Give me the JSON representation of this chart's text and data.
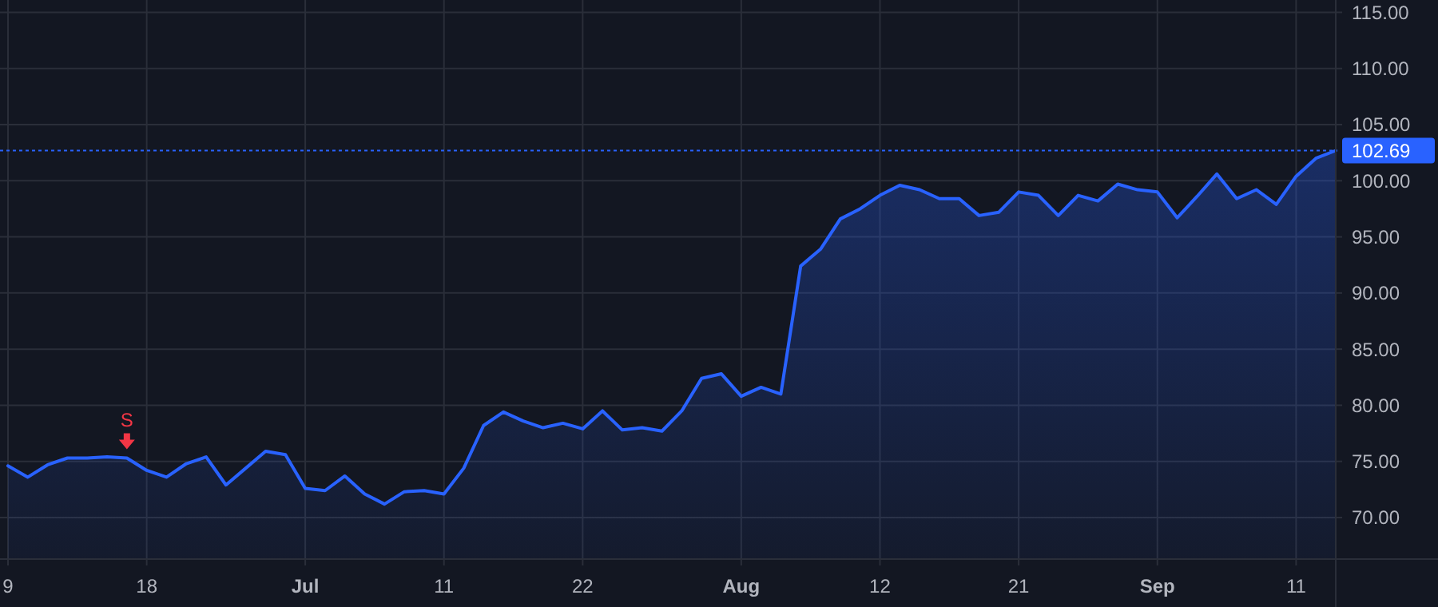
{
  "chart_data": {
    "type": "area",
    "categories": [
      "9",
      null,
      null,
      null,
      null,
      null,
      null,
      "18",
      null,
      null,
      null,
      null,
      null,
      null,
      null,
      "Jul",
      null,
      null,
      null,
      null,
      null,
      null,
      "11",
      null,
      null,
      null,
      null,
      null,
      null,
      "22",
      null,
      null,
      null,
      null,
      null,
      null,
      null,
      "Aug",
      null,
      null,
      null,
      null,
      null,
      null,
      "12",
      null,
      null,
      null,
      null,
      null,
      null,
      "21",
      null,
      null,
      null,
      null,
      null,
      null,
      "Sep",
      null,
      null,
      null,
      null,
      null,
      null,
      "11",
      null,
      null
    ],
    "series": [
      {
        "color": "#2962ff",
        "values": [
          74.6,
          73.6,
          74.7,
          75.3,
          75.3,
          75.4,
          75.3,
          74.2,
          73.6,
          74.8,
          75.4,
          72.9,
          74.4,
          75.9,
          75.6,
          72.6,
          72.4,
          73.7,
          72.1,
          71.2,
          72.3,
          72.4,
          72.1,
          74.4,
          78.2,
          79.4,
          78.6,
          78.0,
          78.4,
          77.9,
          79.5,
          77.8,
          78.0,
          77.7,
          79.5,
          82.4,
          82.8,
          80.8,
          81.6,
          81.0,
          92.4,
          93.9,
          96.6,
          97.5,
          98.7,
          99.6,
          99.2,
          98.4,
          98.4,
          96.9,
          97.2,
          99.0,
          98.7,
          96.9,
          98.7,
          98.2,
          99.7,
          99.2,
          99.0,
          96.7,
          98.6,
          100.6,
          98.4,
          99.2,
          97.9,
          100.4,
          102.0,
          102.69
        ]
      },
      {
        "type": "scatter",
        "color": "#f23645",
        "marker": "triangle",
        "values": [
          null,
          null,
          null,
          null,
          null,
          null,
          76.8,
          null,
          null,
          null,
          null,
          null,
          null,
          null,
          null,
          null,
          null,
          null,
          null,
          null,
          null,
          null,
          null,
          null,
          null,
          null,
          null,
          null,
          null,
          null,
          null,
          null,
          null,
          null,
          null,
          null,
          null,
          null,
          null,
          null,
          null,
          null,
          null,
          null,
          null,
          null,
          null,
          null,
          null,
          null,
          null,
          null,
          null,
          null,
          null,
          null,
          null,
          null,
          null,
          null,
          null,
          null,
          null,
          null,
          null,
          null,
          null,
          null
        ],
        "value_labels": [
          null,
          null,
          null,
          null,
          null,
          null,
          "S",
          null,
          null,
          null,
          null,
          null,
          null,
          null,
          null,
          null,
          null,
          null,
          null,
          null,
          null,
          null,
          null,
          null,
          null,
          null,
          null,
          null,
          null,
          null,
          null,
          null,
          null,
          null,
          null,
          null,
          null,
          null,
          null,
          null,
          null,
          null,
          null,
          null,
          null,
          null,
          null,
          null,
          null,
          null,
          null,
          null,
          null,
          null,
          null,
          null,
          null,
          null,
          null,
          null,
          null,
          null,
          null,
          null,
          null,
          null,
          null,
          null
        ]
      }
    ],
    "ylim": [
      66.3,
      116.1
    ],
    "yticks": [
      {
        "value": 70,
        "label": "70.00"
      },
      {
        "value": 75,
        "label": "75.00"
      },
      {
        "value": 80,
        "label": "80.00"
      },
      {
        "value": 85,
        "label": "85.00"
      },
      {
        "value": 90,
        "label": "90.00"
      },
      {
        "value": 95,
        "label": "95.00"
      },
      {
        "value": 100,
        "label": "100.00"
      },
      {
        "value": 105,
        "label": "105.00"
      },
      {
        "value": 110,
        "label": "110.00"
      },
      {
        "value": 115,
        "label": "115.00"
      }
    ],
    "ref_lines": [
      {
        "axis": "y",
        "value": 102.69,
        "label": "102.69",
        "color": "#2962ff",
        "line_style": "dotted"
      }
    ],
    "grid": true
  }
}
